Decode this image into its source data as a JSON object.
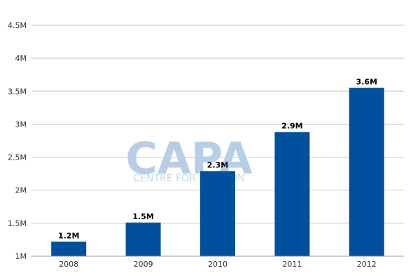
{
  "watermark": {
    "logo": "CAPA",
    "tagline": "CENTRE FOR AVIATION"
  },
  "colors": {
    "bar": "#00509d",
    "grid": "#c8c8c8",
    "axis": "#999999",
    "watermark": "#b7cfe6"
  },
  "chart_data": {
    "type": "bar",
    "categories": [
      "2008",
      "2009",
      "2010",
      "2011",
      "2012"
    ],
    "values": [
      1.22,
      1.51,
      2.29,
      2.88,
      3.55
    ],
    "data_labels": [
      "1.2M",
      "1.5M",
      "2.3M",
      "2.9M",
      "3.6M"
    ],
    "yticks": [
      1,
      1.5,
      2,
      2.5,
      3,
      3.5,
      4,
      4.5
    ],
    "ytick_labels": [
      "1M",
      "1.5M",
      "2M",
      "2.5M",
      "3M",
      "3.5M",
      "4M",
      "4.5M"
    ],
    "ylim": [
      1,
      4.5
    ],
    "grid": true,
    "legend": "none"
  }
}
